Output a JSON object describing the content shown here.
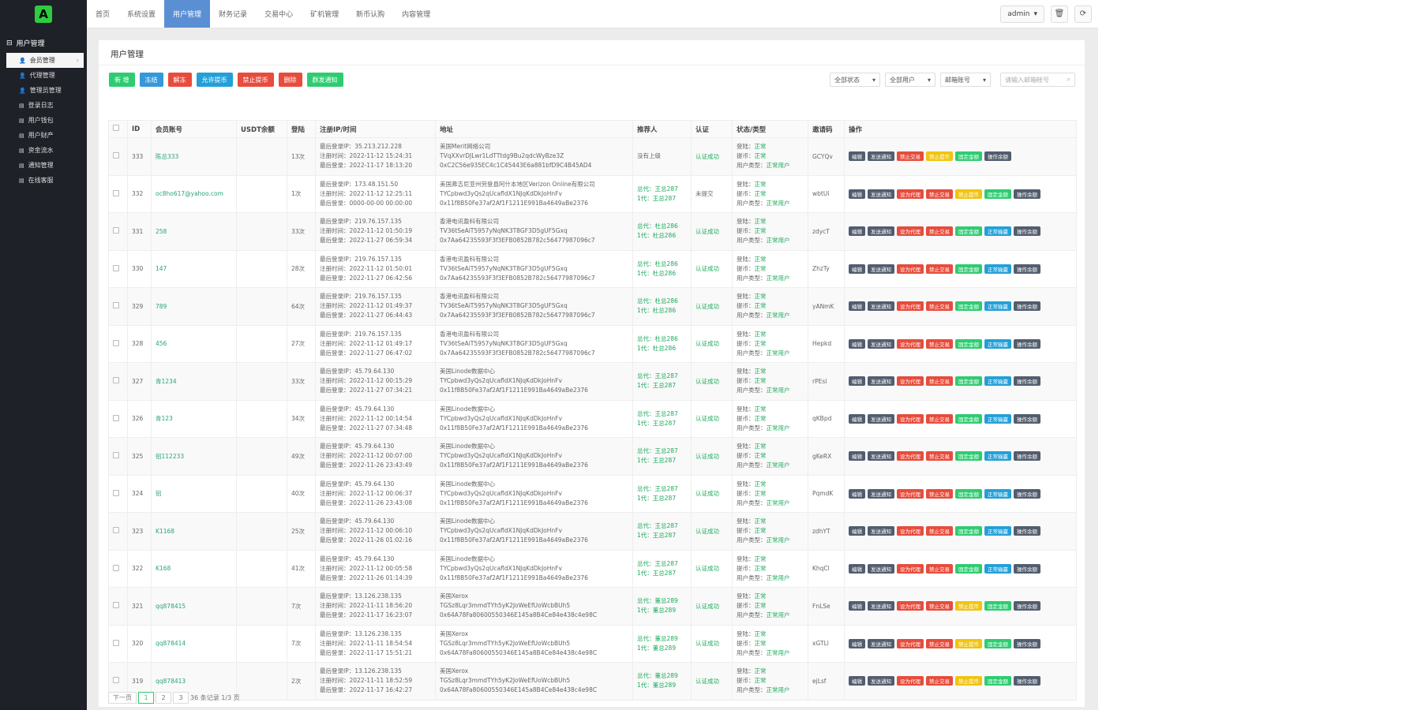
{
  "brand": {
    "logo_letter": "A",
    "logo_color": "#2ecc40"
  },
  "topnav": {
    "items": [
      "首页",
      "系统设置",
      "用户管理",
      "财务记录",
      "交易中心",
      "矿机管理",
      "新币认购",
      "内容管理"
    ],
    "active_index": 2,
    "admin_label": "admin"
  },
  "sidebar": {
    "section_title": "用户管理",
    "items": [
      "会员管理",
      "代理管理",
      "管理员管理",
      "登录日志",
      "用户钱包",
      "用户财产",
      "资金流水",
      "通知管理",
      "在线客服"
    ],
    "active_index": 0
  },
  "panel": {
    "title": "用户管理"
  },
  "toolbar": {
    "buttons": [
      {
        "label": "新 增",
        "color": "#2ecc71"
      },
      {
        "label": "冻结",
        "color": "#3498db"
      },
      {
        "label": "解冻",
        "color": "#e74c3c"
      },
      {
        "label": "允许提币",
        "color": "#23a0d8"
      },
      {
        "label": "禁止提币",
        "color": "#e74c3c"
      },
      {
        "label": "删除",
        "color": "#e74c3c"
      },
      {
        "label": "群发通知",
        "color": "#2ecc71"
      }
    ],
    "filters": [
      "全部状态",
      "全部用户",
      "邮箱账号"
    ],
    "search_placeholder": "请输入邮箱帐号"
  },
  "table": {
    "headers": [
      "",
      "ID",
      "会员账号",
      "USDT余额",
      "登陆",
      "注册IP/时间",
      "地址",
      "推荐人",
      "认证",
      "状态/类型",
      "邀请码",
      "操作"
    ],
    "rows": [
      {
        "id": "333",
        "account": "陈总333",
        "usdt": "",
        "logins": "13次",
        "ip": "最后登录IP：35.213.212.228",
        "reg": "注册时间：2022-11-12 15:24:31",
        "last": "最后登录：2022-11-17 18:13:20",
        "addr1": "美国Merit网络公司",
        "addr2": "TVqXXvrDJLwr1LdTTtdg9Bu2qdcWyBze3Z",
        "addr3": "0xC2C56e935EC4c1C45443E6a881bfD9C4B45AD4",
        "ref1": "没有上级",
        "ref2": "",
        "auth": "认证成功",
        "ops": [
          "编辑",
          "发送通知",
          "禁止交易",
          "禁止提币",
          "固定金额",
          "操作余额"
        ]
      },
      {
        "id": "332",
        "account": "oc8ho617@yahoo.com",
        "usdt": "",
        "logins": "1次",
        "ip": "最后登录IP：173.48.151.50",
        "reg": "注册时间：2022-11-12 12:25:11",
        "last": "最后登录：0000-00-00 00:00:00",
        "addr1": "美国弗吉尼亚州劳登县阿什本地区Verizon Online有限公司",
        "addr2": "TYCpbwd3yQs2qUcafldX1NJqKdDkJoHnFv",
        "addr3": "0x11f8B50Fe37af2Af1F1211E991Ba4649aBe2376",
        "ref1": "总代：王总287",
        "ref2": "1代：王总287",
        "auth": "未提交",
        "ops": [
          "编辑",
          "发送通知",
          "设为代理",
          "禁止交易",
          "禁止提币",
          "固定金额",
          "操作余额"
        ]
      },
      {
        "id": "331",
        "account": "258",
        "usdt": "",
        "logins": "33次",
        "ip": "最后登录IP：219.76.157.135",
        "reg": "注册时间：2022-11-12 01:50:19",
        "last": "最后登录：2022-11-27 06:59:34",
        "addr1": "香港电讯盈科有限公司",
        "addr2": "TV36tSeAiT5957yNqNK3T8GF3D5gUF5Gxq",
        "addr3": "0x7Aa64235593F3f3EFB0852B782c56477987096c7",
        "ref1": "总代：杜总286",
        "ref2": "1代：杜总286",
        "auth": "认证成功",
        "ops": [
          "编辑",
          "发送通知",
          "设为代理",
          "禁止交易",
          "固定金额",
          "正常输赢",
          "操作余额"
        ]
      },
      {
        "id": "330",
        "account": "147",
        "usdt": "",
        "logins": "28次",
        "ip": "最后登录IP：219.76.157.135",
        "reg": "注册时间：2022-11-12 01:50:01",
        "last": "最后登录：2022-11-27 06:42:56",
        "addr1": "香港电讯盈科有限公司",
        "addr2": "TV36tSeAiT5957yNqNK3T8GF3D5gUF5Gxq",
        "addr3": "0x7Aa64235593F3f3EFB0852B782c56477987096c7",
        "ref1": "总代：杜总286",
        "ref2": "1代：杜总286",
        "auth": "认证成功",
        "ops": [
          "编辑",
          "发送通知",
          "设为代理",
          "禁止交易",
          "固定金额",
          "正常输赢",
          "操作余额"
        ]
      },
      {
        "id": "329",
        "account": "789",
        "usdt": "",
        "logins": "64次",
        "ip": "最后登录IP：219.76.157.135",
        "reg": "注册时间：2022-11-12 01:49:37",
        "last": "最后登录：2022-11-27 06:44:43",
        "addr1": "香港电讯盈科有限公司",
        "addr2": "TV36tSeAiT5957yNqNK3T8GF3D5gUF5Gxq",
        "addr3": "0x7Aa64235593F3f3EFB0852B782c56477987096c7",
        "ref1": "总代：杜总286",
        "ref2": "1代：杜总286",
        "auth": "认证成功",
        "ops": [
          "编辑",
          "发送通知",
          "设为代理",
          "禁止交易",
          "固定金额",
          "正常输赢",
          "操作余额"
        ]
      },
      {
        "id": "328",
        "account": "456",
        "usdt": "",
        "logins": "27次",
        "ip": "最后登录IP：219.76.157.135",
        "reg": "注册时间：2022-11-12 01:49:17",
        "last": "最后登录：2022-11-27 06:47:02",
        "addr1": "香港电讯盈科有限公司",
        "addr2": "TV36tSeAiT5957yNqNK3T8GF3D5gUF5Gxq",
        "addr3": "0x7Aa64235593F3f3EFB0852B782c56477987096c7",
        "ref1": "总代：杜总286",
        "ref2": "1代：杜总286",
        "auth": "认证成功",
        "ops": [
          "编辑",
          "发送通知",
          "设为代理",
          "禁止交易",
          "固定金额",
          "正常输赢",
          "操作余额"
        ]
      },
      {
        "id": "327",
        "account": "青1234",
        "usdt": "",
        "logins": "33次",
        "ip": "最后登录IP：45.79.64.130",
        "reg": "注册时间：2022-11-12 00:15:29",
        "last": "最后登录：2022-11-27 07:34:21",
        "addr1": "美国Linode数据中心",
        "addr2": "TYCpbwd3yQs2qUcafldX1NJqKdDkJoHnFv",
        "addr3": "0x11f8B50Fe37af2Af1F1211E991Ba4649aBe2376",
        "ref1": "总代：王总287",
        "ref2": "1代：王总287",
        "auth": "认证成功",
        "ops": [
          "编辑",
          "发送通知",
          "设为代理",
          "禁止交易",
          "固定金额",
          "正常输赢",
          "操作余额"
        ]
      },
      {
        "id": "326",
        "account": "青123",
        "usdt": "",
        "logins": "34次",
        "ip": "最后登录IP：45.79.64.130",
        "reg": "注册时间：2022-11-12 00:14:54",
        "last": "最后登录：2022-11-27 07:34:48",
        "addr1": "美国Linode数据中心",
        "addr2": "TYCpbwd3yQs2qUcafldX1NJqKdDkJoHnFv",
        "addr3": "0x11f8B50Fe37af2Af1F1211E991Ba4649aBe2376",
        "ref1": "总代：王总287",
        "ref2": "1代：王总287",
        "auth": "认证成功",
        "ops": [
          "编辑",
          "发送通知",
          "设为代理",
          "禁止交易",
          "固定金额",
          "正常输赢",
          "操作余额"
        ]
      },
      {
        "id": "325",
        "account": "铝112233",
        "usdt": "",
        "logins": "49次",
        "ip": "最后登录IP：45.79.64.130",
        "reg": "注册时间：2022-11-12 00:07:00",
        "last": "最后登录：2022-11-26 23:43:49",
        "addr1": "美国Linode数据中心",
        "addr2": "TYCpbwd3yQs2qUcafldX1NJqKdDkJoHnFv",
        "addr3": "0x11f8B50Fe37af2Af1F1211E991Ba4649aBe2376",
        "ref1": "总代：王总287",
        "ref2": "1代：王总287",
        "auth": "认证成功",
        "ops": [
          "编辑",
          "发送通知",
          "设为代理",
          "禁止交易",
          "固定金额",
          "正常输赢",
          "操作余额"
        ]
      },
      {
        "id": "324",
        "account": "铝",
        "usdt": "",
        "logins": "40次",
        "ip": "最后登录IP：45.79.64.130",
        "reg": "注册时间：2022-11-12 00:06:37",
        "last": "最后登录：2022-11-26 23:43:08",
        "addr1": "美国Linode数据中心",
        "addr2": "TYCpbwd3yQs2qUcafldX1NJqKdDkJoHnFv",
        "addr3": "0x11f8B50Fe37af2Af1F1211E991Ba4649aBe2376",
        "ref1": "总代：王总287",
        "ref2": "1代：王总287",
        "auth": "认证成功",
        "ops": [
          "编辑",
          "发送通知",
          "设为代理",
          "禁止交易",
          "固定金额",
          "正常输赢",
          "操作余额"
        ]
      },
      {
        "id": "323",
        "account": "K1168",
        "usdt": "",
        "logins": "25次",
        "ip": "最后登录IP：45.79.64.130",
        "reg": "注册时间：2022-11-12 00:06:10",
        "last": "最后登录：2022-11-26 01:02:16",
        "addr1": "美国Linode数据中心",
        "addr2": "TYCpbwd3yQs2qUcafldX1NJqKdDkJoHnFv",
        "addr3": "0x11f8B50Fe37af2Af1F1211E991Ba4649aBe2376",
        "ref1": "总代：王总287",
        "ref2": "1代：王总287",
        "auth": "认证成功",
        "ops": [
          "编辑",
          "发送通知",
          "设为代理",
          "禁止交易",
          "固定金额",
          "正常输赢",
          "操作余额"
        ]
      },
      {
        "id": "322",
        "account": "K168",
        "usdt": "",
        "logins": "41次",
        "ip": "最后登录IP：45.79.64.130",
        "reg": "注册时间：2022-11-12 00:05:58",
        "last": "最后登录：2022-11-26 01:14:39",
        "addr1": "美国Linode数据中心",
        "addr2": "TYCpbwd3yQs2qUcafldX1NJqKdDkJoHnFv",
        "addr3": "0x11f8B50Fe37af2Af1F1211E991Ba4649aBe2376",
        "ref1": "总代：王总287",
        "ref2": "1代：王总287",
        "auth": "认证成功",
        "ops": [
          "编辑",
          "发送通知",
          "设为代理",
          "禁止交易",
          "固定金额",
          "正常输赢",
          "操作余额"
        ]
      },
      {
        "id": "321",
        "account": "qq878415",
        "usdt": "",
        "logins": "7次",
        "ip": "最后登录IP：13.126.238.135",
        "reg": "注册时间：2022-11-11 18:56:20",
        "last": "最后登录：2022-11-17 16:23:07",
        "addr1": "美国Xerox",
        "addr2": "TGSz8Lqr3mmdTYh5yK2JoWeEfUoWcbBUh5",
        "addr3": "0x64A78Fa80600550346E145a8B4Ce84e438c4e98C",
        "ref1": "总代：董总289",
        "ref2": "1代：董总289",
        "auth": "认证成功",
        "ops": [
          "编辑",
          "发送通知",
          "设为代理",
          "禁止交易",
          "禁止提币",
          "固定金额",
          "操作余额"
        ]
      },
      {
        "id": "320",
        "account": "qq878414",
        "usdt": "",
        "logins": "7次",
        "ip": "最后登录IP：13.126.238.135",
        "reg": "注册时间：2022-11-11 18:54:54",
        "last": "最后登录：2022-11-17 15:51:21",
        "addr1": "美国Xerox",
        "addr2": "TGSz8Lqr3mmdTYh5yK2JoWeEfUoWcbBUh5",
        "addr3": "0x64A78Fa80600550346E145a8B4Ce84e438c4e98C",
        "ref1": "总代：董总289",
        "ref2": "1代：董总289",
        "auth": "认证成功",
        "ops": [
          "编辑",
          "发送通知",
          "设为代理",
          "禁止交易",
          "禁止提币",
          "固定金额",
          "操作余额"
        ]
      },
      {
        "id": "319",
        "account": "qq878413",
        "usdt": "",
        "logins": "2次",
        "ip": "最后登录IP：13.126.238.135",
        "reg": "注册时间：2022-11-11 18:52:59",
        "last": "最后登录：2022-11-17 16:42:27",
        "addr1": "美国Xerox",
        "addr2": "TGSz8Lqr3mmdTYh5yK2JoWeEfUoWcbBUh5",
        "addr3": "0x64A78Fa80600550346E145a8B4Ce84e438c4e98C",
        "ref1": "总代：董总289",
        "ref2": "1代：董总289",
        "auth": "认证成功",
        "ops": [
          "编辑",
          "发送通知",
          "设为代理",
          "禁止交易",
          "禁止提币",
          "固定金额",
          "操作余额"
        ]
      }
    ],
    "status_lines": [
      "登陆：正常",
      "提币：正常",
      "用户类型：正常用户"
    ],
    "invite_codes": [
      "GCYQv",
      "wbtUi",
      "zdycT",
      "ZhzTy",
      "yANmK",
      "Hepkd",
      "rPEsl",
      "qKBpd",
      "gKeRX",
      "PqmdK",
      "zdhYT",
      "KhqCl",
      "FnLSe",
      "xGTLl",
      "ejLsf"
    ]
  },
  "op_colors": {
    "编辑": "#525d6e",
    "发送通知": "#525d6e",
    "设为代理": "#e74c3c",
    "禁止交易": "#e74c3c",
    "禁止提币": "#f1c40f",
    "固定金额": "#2ecc71",
    "正常输赢": "#23a0d8",
    "操作余额": "#525d6e"
  },
  "pagination": {
    "prev": "下一页",
    "pages": [
      "1",
      "2",
      "3"
    ],
    "active": "1",
    "summary": "36 条记录 1/3 页"
  }
}
